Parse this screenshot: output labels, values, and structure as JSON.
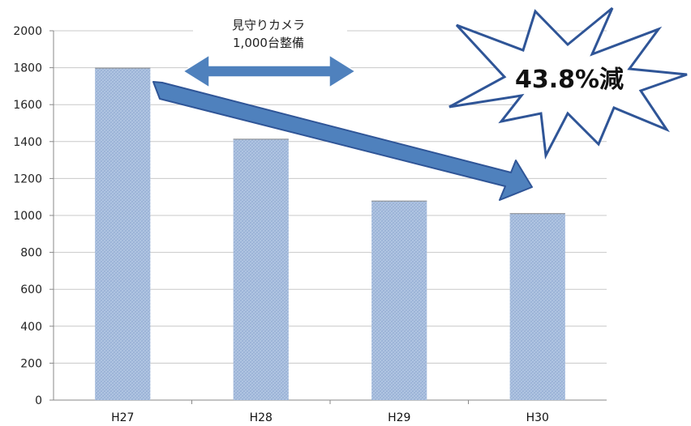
{
  "chart_data": {
    "type": "bar",
    "categories": [
      "H27",
      "H28",
      "H29",
      "H30"
    ],
    "values": [
      1800,
      1415,
      1080,
      1012
    ],
    "ylim": [
      0,
      2000
    ],
    "yticks": [
      0,
      200,
      400,
      600,
      800,
      1000,
      1200,
      1400,
      1600,
      1800,
      2000
    ],
    "grid": true,
    "bar_color": "#a6bcdc",
    "annotations": {
      "camera_line1": "見守りカメラ",
      "camera_line2": "1,000台整備",
      "reduction": "43.8%減"
    },
    "arrow_color": "#4f81bd",
    "arrow_outline": "#2f5597"
  }
}
